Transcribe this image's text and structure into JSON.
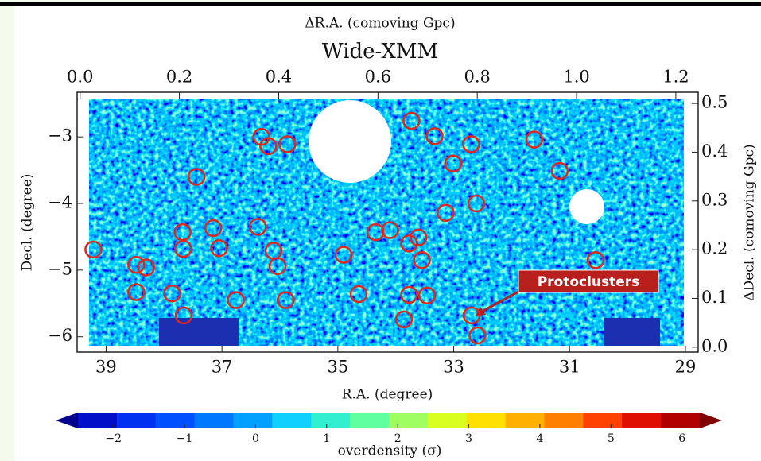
{
  "chart_data": {
    "type": "scatter",
    "title": "Wide-XMM",
    "x_label": "R.A. (degree)",
    "y_label": "Decl. (degree)",
    "x2_label": "ΔR.A. (comoving Gpc)",
    "y2_label": "ΔDecl. (comoving Gpc)",
    "annotation": "Protoclusters",
    "color": "#e3261c",
    "x": [
      39.22,
      38.48,
      38.31,
      38.48,
      37.68,
      37.67,
      37.86,
      37.66,
      37.44,
      37.15,
      37.05,
      36.76,
      36.32,
      36.2,
      35.87,
      36.38,
      36.11,
      36.04,
      35.9,
      34.9,
      34.64,
      34.35,
      34.1,
      33.73,
      33.33,
      33.77,
      33.61,
      33.55,
      33.77,
      33.86,
      33.46,
      33.01,
      32.7,
      33.14,
      32.61,
      32.69,
      32.59,
      31.61,
      31.17,
      30.55
    ],
    "values": [
      -4.69,
      -4.92,
      -4.96,
      -5.33,
      -4.43,
      -4.68,
      -5.35,
      -5.68,
      -3.6,
      -4.37,
      -4.67,
      -5.45,
      -3.0,
      -3.14,
      -3.11,
      -4.35,
      -4.71,
      -4.94,
      -5.45,
      -4.77,
      -5.36,
      -4.43,
      -4.4,
      -2.76,
      -2.99,
      -4.6,
      -4.51,
      -4.85,
      -5.37,
      -5.74,
      -5.38,
      -3.4,
      -3.11,
      -4.14,
      -4.0,
      -5.68,
      -5.98,
      -3.04,
      -3.51,
      -4.85
    ],
    "xlim": [
      39.5,
      28.78
    ],
    "ylim": [
      -6.23,
      -2.33
    ],
    "xticks": [
      39,
      37,
      35,
      33,
      31,
      29
    ],
    "yticks": [
      {
        "value": -3,
        "label": "−3"
      },
      {
        "value": -4,
        "label": "−4"
      },
      {
        "value": -5,
        "label": "−5"
      },
      {
        "value": -6,
        "label": "−6"
      }
    ],
    "x2lim": [
      -0.006,
      1.245
    ],
    "x2ticks": [
      {
        "value": 0,
        "label": "0.0"
      },
      0.2,
      0.4,
      0.6,
      0.8,
      {
        "value": 1,
        "label": "1.0"
      },
      1.2
    ],
    "y2lim": [
      -0.01,
      0.523
    ],
    "y2ticks": [
      0.5,
      0.4,
      0.3,
      0.2,
      0.1,
      {
        "value": 0,
        "label": "0.0"
      }
    ],
    "colorbar": {
      "label": "overdensity (σ)",
      "lim": [
        -2.5,
        6.25
      ],
      "ticks": [
        {
          "value": -2,
          "label": "−2"
        },
        {
          "value": -1,
          "label": "−1"
        },
        0,
        1,
        2,
        3,
        4,
        5,
        6
      ],
      "colors": [
        "#00008c",
        "#0010c8",
        "#0030f0",
        "#0050ff",
        "#0078ff",
        "#00a0ff",
        "#10d0ff",
        "#30f0d0",
        "#60ffa0",
        "#a0ff60",
        "#d8ff20",
        "#ffe000",
        "#ffb000",
        "#ff8000",
        "#ff4000",
        "#e01000",
        "#b00000",
        "#800000"
      ]
    }
  }
}
